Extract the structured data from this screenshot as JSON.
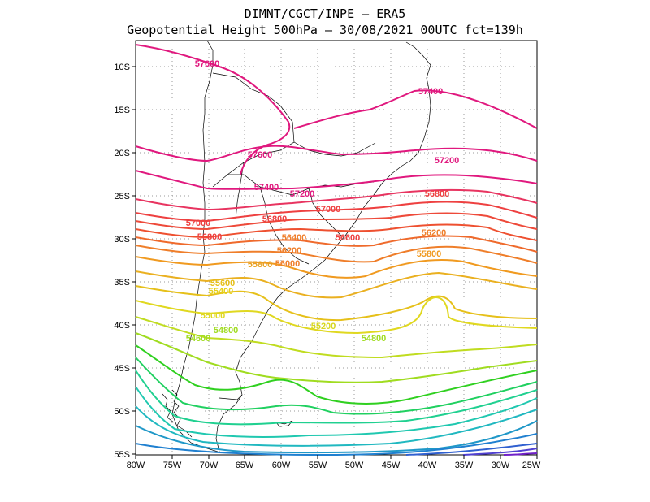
{
  "title_line1": "DIMNT/CGCT/INPE  –  ERA5",
  "title_line2": "Geopotential Height 500hPa –  30/08/2021 00UTC fct=139h",
  "y_ticks": [
    "10S",
    "15S",
    "20S",
    "25S",
    "30S",
    "35S",
    "40S",
    "45S",
    "50S",
    "55S"
  ],
  "x_ticks": [
    "80W",
    "75W",
    "70W",
    "65W",
    "60W",
    "55W",
    "50W",
    "45W",
    "40W",
    "35W",
    "30W",
    "25W"
  ],
  "contour_labels": [
    {
      "text": "57600",
      "color": "#e0187e"
    },
    {
      "text": "57400",
      "color": "#e0187e"
    },
    {
      "text": "57600",
      "color": "#e0187e"
    },
    {
      "text": "57200",
      "color": "#e0187e"
    },
    {
      "text": "57400",
      "color": "#e0187e"
    },
    {
      "text": "57200",
      "color": "#e0187e"
    },
    {
      "text": "56800",
      "color": "#ee4040"
    },
    {
      "text": "57000",
      "color": "#ee4040"
    },
    {
      "text": "57000",
      "color": "#ee4040"
    },
    {
      "text": "56800",
      "color": "#ee4040"
    },
    {
      "text": "56800",
      "color": "#ee4040"
    },
    {
      "text": "56600",
      "color": "#ee4040"
    },
    {
      "text": "56200",
      "color": "#ef7e2a"
    },
    {
      "text": "56400",
      "color": "#ef7e2a"
    },
    {
      "text": "56200",
      "color": "#ef7e2a"
    },
    {
      "text": "55800",
      "color": "#f09a20"
    },
    {
      "text": "55800",
      "color": "#e8a020"
    },
    {
      "text": "56000",
      "color": "#ef7e2a"
    },
    {
      "text": "55600",
      "color": "#e6c01a"
    },
    {
      "text": "55400",
      "color": "#e6d01a"
    },
    {
      "text": "55000",
      "color": "#e0d820"
    },
    {
      "text": "55200",
      "color": "#d8d820"
    },
    {
      "text": "54800",
      "color": "#a0dc20"
    },
    {
      "text": "54800",
      "color": "#a0dc20"
    },
    {
      "text": "54600",
      "color": "#a0dc20"
    }
  ]
}
